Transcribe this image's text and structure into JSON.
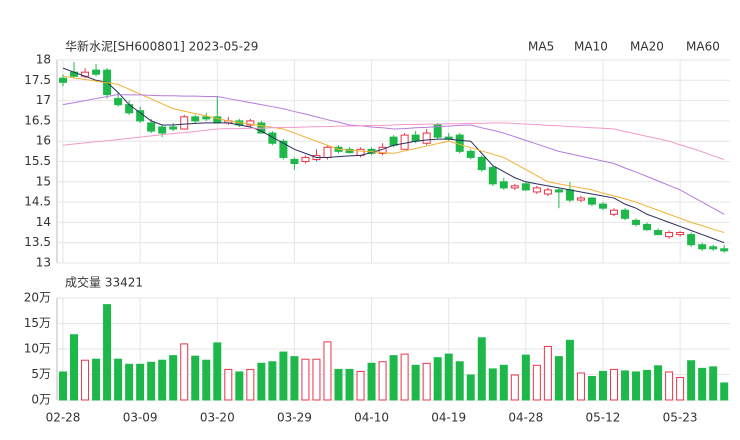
{
  "chart_data": [
    {
      "type": "candlestick",
      "title": "华新水泥[SH600801] 2023-05-29",
      "categories": [
        "02-28",
        null,
        null,
        null,
        null,
        null,
        null,
        "03-09",
        null,
        null,
        null,
        null,
        null,
        null,
        "03-20",
        null,
        null,
        null,
        null,
        null,
        null,
        "03-29",
        null,
        null,
        null,
        null,
        null,
        null,
        "04-10",
        null,
        null,
        null,
        null,
        null,
        null,
        "04-19",
        null,
        null,
        null,
        null,
        null,
        null,
        "04-28",
        null,
        null,
        null,
        null,
        null,
        null,
        "05-12",
        null,
        null,
        null,
        null,
        null,
        null,
        "05-23",
        null,
        null,
        null,
        null
      ],
      "open": [
        17.55,
        17.7,
        17.6,
        17.75,
        17.75,
        17.05,
        16.9,
        16.75,
        16.45,
        16.35,
        16.35,
        16.3,
        16.6,
        16.6,
        16.6,
        16.45,
        16.5,
        16.4,
        16.45,
        16.2,
        16.0,
        15.55,
        15.5,
        15.55,
        15.6,
        15.85,
        15.8,
        15.65,
        15.8,
        15.7,
        16.1,
        15.8,
        16.15,
        15.95,
        16.4,
        16.1,
        16.15,
        15.75,
        15.6,
        15.35,
        15.0,
        14.85,
        14.95,
        14.75,
        14.7,
        14.8,
        14.8,
        14.55,
        14.6,
        14.45,
        14.2,
        14.3,
        14.05,
        13.95,
        13.8,
        13.65,
        13.7,
        13.7,
        13.45,
        13.4,
        13.35
      ],
      "high": [
        17.65,
        17.95,
        17.8,
        17.9,
        17.8,
        17.2,
        17.0,
        16.85,
        16.55,
        16.4,
        16.45,
        16.65,
        16.65,
        16.7,
        17.1,
        16.6,
        16.55,
        16.55,
        16.5,
        16.25,
        16.05,
        15.6,
        15.65,
        15.8,
        15.9,
        15.9,
        15.85,
        15.85,
        15.85,
        15.95,
        16.15,
        16.2,
        16.25,
        16.3,
        16.45,
        16.2,
        16.2,
        15.8,
        15.65,
        15.4,
        15.1,
        14.95,
        15.0,
        14.9,
        14.85,
        14.85,
        15.0,
        14.65,
        14.62,
        14.5,
        14.35,
        14.35,
        14.1,
        14.0,
        13.85,
        13.8,
        13.78,
        13.75,
        13.5,
        13.45,
        13.45
      ],
      "low": [
        17.35,
        17.55,
        17.55,
        17.6,
        17.05,
        16.85,
        16.65,
        16.45,
        16.2,
        16.1,
        16.25,
        16.3,
        16.45,
        16.5,
        16.45,
        16.4,
        16.35,
        16.35,
        16.2,
        15.9,
        15.55,
        15.3,
        15.45,
        15.5,
        15.55,
        15.7,
        15.7,
        15.6,
        15.65,
        15.65,
        15.85,
        15.8,
        15.95,
        15.9,
        16.05,
        16.0,
        15.7,
        15.55,
        15.25,
        14.9,
        14.8,
        14.8,
        14.78,
        14.7,
        14.65,
        14.35,
        14.5,
        14.5,
        14.4,
        14.3,
        14.15,
        14.05,
        13.9,
        13.8,
        13.68,
        13.6,
        13.65,
        13.4,
        13.3,
        13.3,
        13.25
      ],
      "close": [
        17.45,
        17.6,
        17.7,
        17.65,
        17.15,
        16.9,
        16.7,
        16.5,
        16.25,
        16.2,
        16.3,
        16.6,
        16.5,
        16.55,
        16.45,
        16.5,
        16.4,
        16.5,
        16.2,
        15.95,
        15.6,
        15.45,
        15.6,
        15.65,
        15.85,
        15.75,
        15.72,
        15.8,
        15.7,
        15.85,
        15.9,
        16.15,
        16.0,
        16.2,
        16.1,
        16.05,
        15.75,
        15.6,
        15.3,
        14.95,
        14.85,
        14.9,
        14.8,
        14.85,
        14.8,
        14.75,
        14.55,
        14.6,
        14.45,
        14.35,
        14.3,
        14.1,
        13.95,
        13.82,
        13.7,
        13.75,
        13.75,
        13.45,
        13.35,
        13.35,
        13.3
      ],
      "up_color": "#e8354a",
      "down_color": "#1eb84a",
      "series": [
        {
          "name": "MA5",
          "color": "#2a2f5c",
          "values": [
            17.8,
            17.7,
            17.6,
            17.5,
            17.45,
            17.2,
            16.9,
            16.7,
            16.5,
            16.4,
            16.4,
            16.42,
            16.44,
            16.45,
            16.45,
            16.45,
            16.4,
            16.35,
            16.25,
            16.1,
            15.95,
            15.8,
            15.7,
            15.6,
            15.6,
            15.62,
            15.64,
            15.65,
            15.72,
            15.8,
            15.9,
            15.95,
            16.0,
            16.03,
            16.05,
            16.05,
            16.02,
            16.0,
            15.7,
            15.4,
            15.25,
            15.1,
            15.0,
            14.95,
            14.9,
            14.85,
            14.8,
            14.75,
            14.7,
            14.65,
            14.6,
            14.45,
            14.35,
            14.2,
            14.1,
            14.0,
            13.9,
            13.8,
            13.7,
            13.6,
            13.5
          ]
        },
        {
          "name": "MA10",
          "color": "#f2b134",
          "values": [
            17.6,
            17.56,
            17.52,
            17.48,
            17.44,
            17.4,
            17.28,
            17.16,
            17.04,
            16.92,
            16.8,
            16.74,
            16.68,
            16.62,
            16.56,
            16.5,
            16.46,
            16.42,
            16.38,
            16.34,
            16.3,
            16.2,
            16.1,
            16.0,
            15.9,
            15.8,
            15.78,
            15.76,
            15.74,
            15.72,
            15.7,
            15.76,
            15.82,
            15.88,
            15.94,
            16.0,
            15.92,
            15.84,
            15.76,
            15.68,
            15.6,
            15.45,
            15.3,
            15.15,
            15.0,
            14.95,
            14.9,
            14.85,
            14.8,
            14.72,
            14.65,
            14.58,
            14.5,
            14.4,
            14.3,
            14.2,
            14.1,
            14.0,
            13.92,
            13.83,
            13.75
          ]
        },
        {
          "name": "MA20",
          "color": "#b77be0",
          "values": [
            16.9,
            16.95,
            17.0,
            17.05,
            17.1,
            17.15,
            17.14,
            17.14,
            17.13,
            17.12,
            17.12,
            17.11,
            17.11,
            17.1,
            17.1,
            17.05,
            17.0,
            16.95,
            16.9,
            16.85,
            16.8,
            16.73,
            16.67,
            16.6,
            16.53,
            16.47,
            16.4,
            16.38,
            16.35,
            16.33,
            16.3,
            16.31,
            16.33,
            16.34,
            16.36,
            16.37,
            16.39,
            16.4,
            16.33,
            16.27,
            16.2,
            16.11,
            16.02,
            15.93,
            15.84,
            15.75,
            15.69,
            15.63,
            15.57,
            15.51,
            15.45,
            15.34,
            15.24,
            15.13,
            15.02,
            14.91,
            14.8,
            14.65,
            14.5,
            14.35,
            14.2
          ]
        },
        {
          "name": "MA60",
          "color": "#f29ac8",
          "values": [
            15.9,
            15.93,
            15.96,
            15.99,
            16.01,
            16.04,
            16.07,
            16.1,
            16.13,
            16.16,
            16.19,
            16.21,
            16.24,
            16.27,
            16.3,
            16.31,
            16.31,
            16.32,
            16.32,
            16.33,
            16.34,
            16.34,
            16.35,
            16.36,
            16.36,
            16.37,
            16.37,
            16.38,
            16.39,
            16.39,
            16.4,
            16.41,
            16.41,
            16.42,
            16.42,
            16.43,
            16.43,
            16.44,
            16.44,
            16.45,
            16.45,
            16.44,
            16.42,
            16.41,
            16.39,
            16.38,
            16.36,
            16.35,
            16.33,
            16.32,
            16.3,
            16.24,
            16.18,
            16.12,
            16.06,
            16.0,
            15.91,
            15.83,
            15.74,
            15.64,
            15.55
          ]
        }
      ],
      "ylim": [
        13,
        18
      ],
      "yticks": [
        13,
        13.5,
        14,
        14.5,
        15,
        15.5,
        16,
        16.5,
        17,
        17.5,
        18
      ],
      "grid": true
    },
    {
      "type": "bar",
      "title": "成交量 33421",
      "values": [
        5.5,
        12.8,
        7.8,
        8,
        18.7,
        8,
        7,
        7,
        7.4,
        7.8,
        8.7,
        11,
        8.6,
        7.8,
        11.2,
        6,
        5.5,
        6,
        7.2,
        7.5,
        9.4,
        8.5,
        8,
        8,
        11.4,
        6,
        6,
        5.6,
        7.2,
        7.5,
        8.7,
        9,
        6.8,
        7.2,
        8.3,
        9,
        7.5,
        4.9,
        12.2,
        6.1,
        6.8,
        4.9,
        8.8,
        6.8,
        10.5,
        8.5,
        11.7,
        5.3,
        4.6,
        5.6,
        6,
        5.7,
        5.5,
        5.8,
        6.7,
        5.5,
        4.4,
        7.7,
        6.2,
        6.5,
        3.34
      ],
      "ylim": [
        0,
        20
      ],
      "yticks": [
        {
          "value": 0,
          "label": "0万"
        },
        {
          "value": 5,
          "label": "5万"
        },
        {
          "value": 10,
          "label": "10万"
        },
        {
          "value": 15,
          "label": "15万"
        },
        {
          "value": 20,
          "label": "20万"
        }
      ],
      "grid": true
    }
  ]
}
